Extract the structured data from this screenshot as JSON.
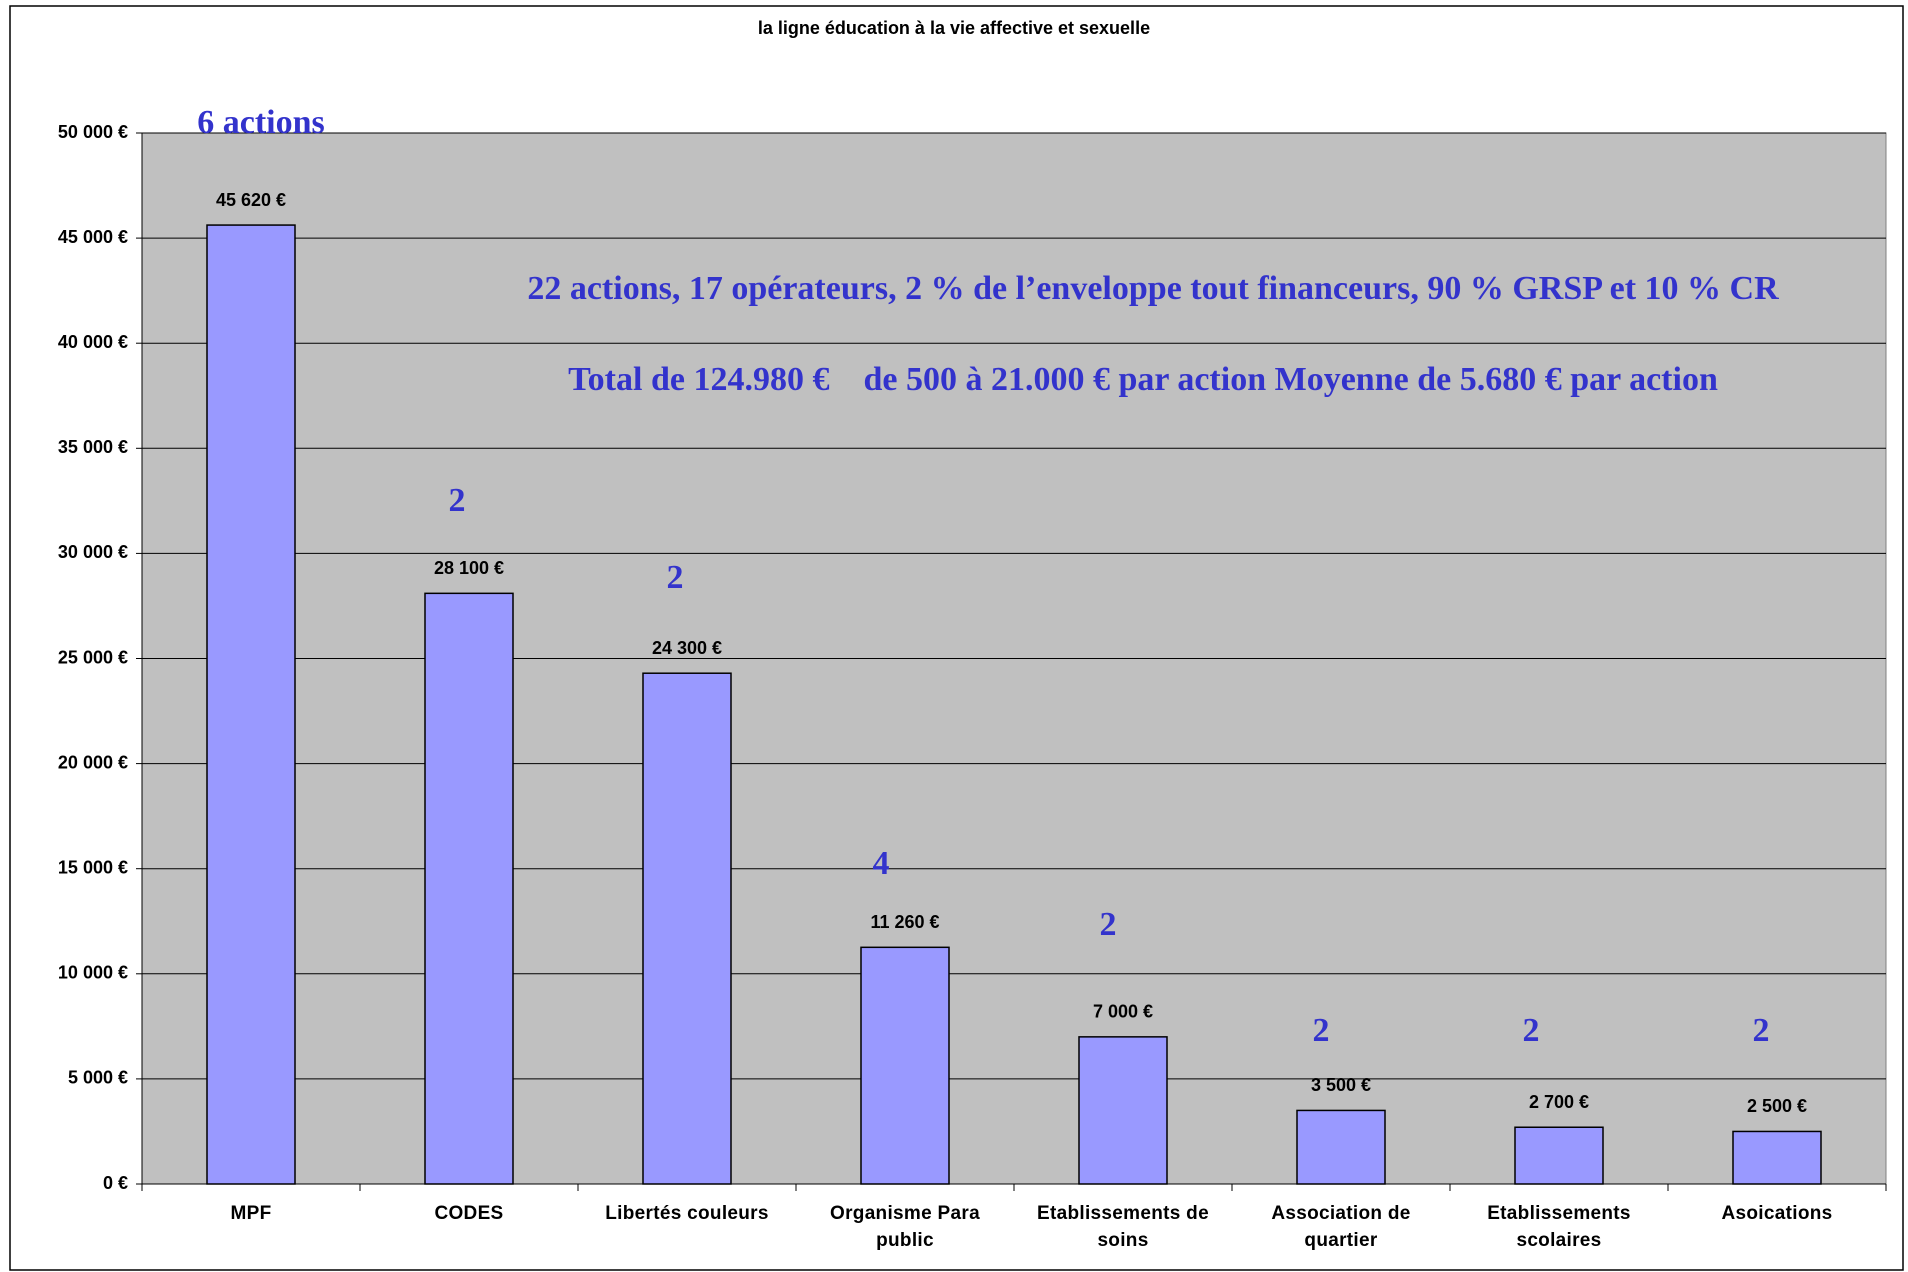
{
  "chart_data": {
    "type": "bar",
    "title": "la ligne éducation à la vie affective et sexuelle",
    "categories": [
      "MPF",
      "CODES",
      "Libertés couleurs",
      "Organisme Para public",
      "Etablissements de soins",
      "Association de quartier",
      "Etablissements scolaires",
      "Asoications"
    ],
    "values": [
      45620,
      28100,
      24300,
      11260,
      7000,
      3500,
      2700,
      2500
    ],
    "value_labels": [
      "45 620 €",
      "28 100 €",
      "24 300 €",
      "11 260 €",
      "7 000 €",
      "3 500 €",
      "2 700 €",
      "2 500 €"
    ],
    "count_labels": [
      "6 actions",
      "2",
      "2",
      "4",
      "2",
      "2",
      "2",
      "2"
    ],
    "annotations": [
      "22 actions, 17 opérateurs, 2 % de l’enveloppe tout financeurs, 90 % GRSP et 10 % CR",
      "Total de 124.980 €    de 500 à 21.000 € par action Moyenne de 5.680 € par action"
    ],
    "color": "#9999ff",
    "ylim": [
      0,
      50000
    ],
    "yticks": [
      {
        "value": 0,
        "label": "0 €"
      },
      {
        "value": 5000,
        "label": "5 000 €"
      },
      {
        "value": 10000,
        "label": "10 000 €"
      },
      {
        "value": 15000,
        "label": "15 000 €"
      },
      {
        "value": 20000,
        "label": "20 000 €"
      },
      {
        "value": 25000,
        "label": "25 000 €"
      },
      {
        "value": 30000,
        "label": "30 000 €"
      },
      {
        "value": 35000,
        "label": "35 000 €"
      },
      {
        "value": 40000,
        "label": "40 000 €"
      },
      {
        "value": 45000,
        "label": "45 000 €"
      },
      {
        "value": 50000,
        "label": "50 000 €"
      }
    ],
    "grid": true
  }
}
